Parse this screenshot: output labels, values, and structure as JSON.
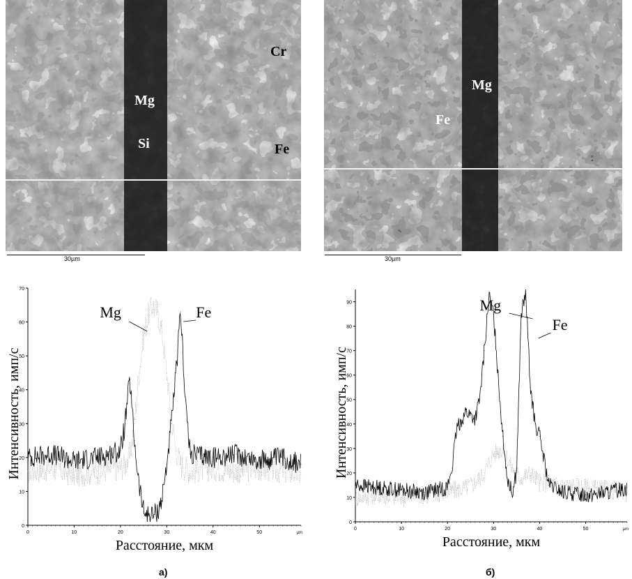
{
  "panels": [
    {
      "caption": "а)",
      "micrograph": {
        "scale_bar_label": "30µm",
        "element_labels": [
          "Mg",
          "Si",
          "Cr",
          "Fe"
        ]
      },
      "chart_data": {
        "type": "line",
        "xlabel": "Расстояние, мкм",
        "ylabel": "Интенсивность, имп/с",
        "x_unit": "µm",
        "xlim": [
          0,
          59
        ],
        "ylim": [
          0,
          70
        ],
        "x_ticks": [
          0,
          10,
          20,
          30,
          40,
          50
        ],
        "y_ticks": [
          0,
          10,
          20,
          30,
          40,
          50,
          60,
          70
        ],
        "annotations": [
          "Mg",
          "Fe"
        ],
        "series": [
          {
            "name": "Fe",
            "color": "#000000",
            "x": [
              0,
              5,
              10,
              15,
              20,
              21,
              22,
              23,
              24,
              25,
              26,
              27,
              28,
              29,
              30,
              31,
              32,
              33,
              34,
              35,
              40,
              45,
              50,
              55,
              59
            ],
            "y": [
              20,
              21,
              19,
              20,
              22,
              30,
              43,
              25,
              12,
              4,
              3,
              3,
              4,
              8,
              18,
              30,
              45,
              63,
              38,
              21,
              20,
              21,
              19,
              20,
              18
            ]
          },
          {
            "name": "Mg",
            "color": "#a8a8a8",
            "x": [
              0,
              5,
              10,
              15,
              20,
              21,
              22,
              23,
              24,
              25,
              26,
              27,
              28,
              29,
              30,
              31,
              32,
              33,
              34,
              35,
              40,
              45,
              50,
              55,
              59
            ],
            "y": [
              16,
              17,
              15,
              16,
              17,
              18,
              20,
              30,
              45,
              56,
              62,
              65,
              63,
              57,
              45,
              32,
              22,
              18,
              17,
              16,
              17,
              16,
              17,
              16,
              15
            ]
          }
        ]
      }
    },
    {
      "caption": "б)",
      "micrograph": {
        "scale_bar_label": "30µm",
        "element_labels": [
          "Mg",
          "Fe"
        ]
      },
      "chart_data": {
        "type": "line",
        "xlabel": "Расстояние, мкм",
        "ylabel": "Интенсивность, имп/с",
        "x_unit": "µm",
        "xlim": [
          0,
          59
        ],
        "ylim": [
          0,
          95
        ],
        "x_ticks": [
          0,
          10,
          20,
          30,
          40,
          50
        ],
        "y_ticks": [
          0,
          10,
          20,
          30,
          40,
          50,
          60,
          70,
          80,
          90
        ],
        "annotations": [
          "Mg",
          "Fe"
        ],
        "series": [
          {
            "name": "Fe",
            "color": "#000000",
            "x": [
              0,
              5,
              10,
              15,
              20,
              21,
              22,
              24,
              26,
              27,
              28,
              29,
              30,
              31,
              32,
              33,
              34,
              35,
              36,
              37,
              38,
              39,
              40,
              42,
              45,
              50,
              55,
              59
            ],
            "y": [
              15,
              14,
              13,
              12,
              14,
              22,
              38,
              45,
              42,
              50,
              70,
              92,
              85,
              60,
              35,
              18,
              12,
              20,
              85,
              93,
              55,
              40,
              35,
              15,
              12,
              11,
              12,
              14
            ]
          },
          {
            "name": "Mg",
            "color": "#a8a8a8",
            "x": [
              0,
              5,
              10,
              15,
              20,
              22,
              24,
              26,
              28,
              30,
              32,
              34,
              36,
              38,
              40,
              45,
              50,
              55,
              59
            ],
            "y": [
              10,
              11,
              10,
              11,
              12,
              13,
              14,
              16,
              20,
              28,
              30,
              22,
              18,
              20,
              16,
              15,
              14,
              13,
              12
            ]
          }
        ]
      }
    }
  ]
}
